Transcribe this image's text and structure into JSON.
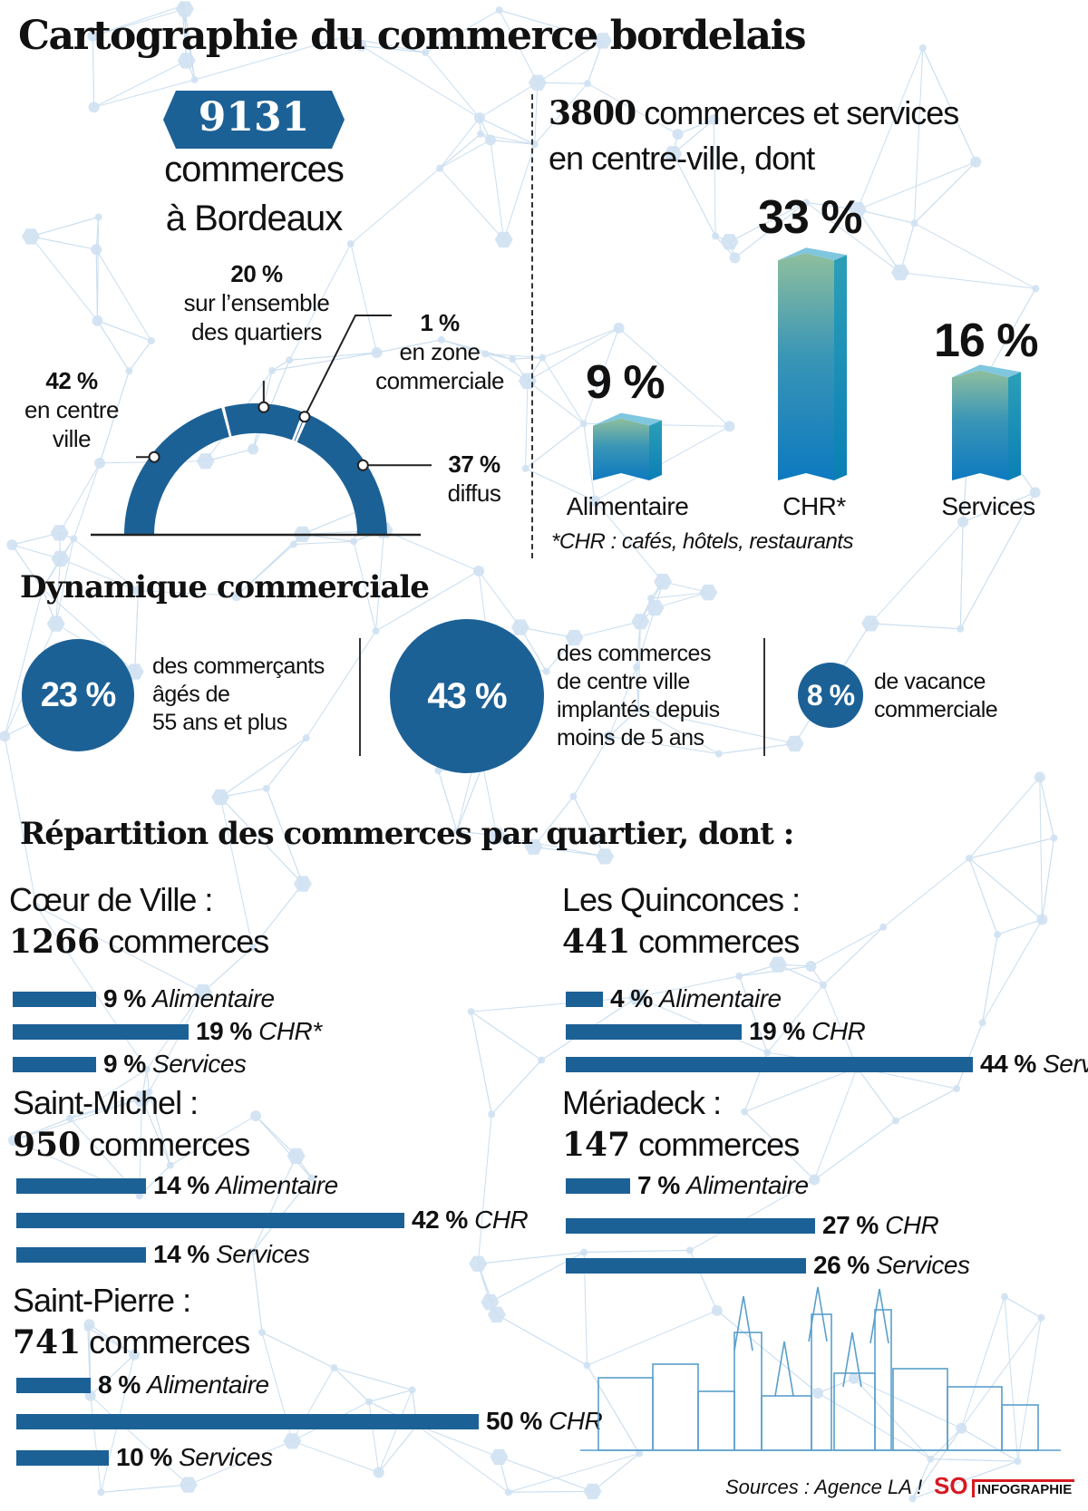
{
  "title": "Cartographie du commerce bordelais",
  "overview": {
    "total_number": "9131",
    "total_label_line1": "commerces",
    "total_label_line2": "à Bordeaux",
    "donut": {
      "segments": [
        {
          "value": 42,
          "pct_label": "42 %",
          "label_line1": "en centre",
          "label_line2": "ville"
        },
        {
          "value": 20,
          "pct_label": "20 %",
          "label_line1": "sur l’ensemble",
          "label_line2": "des quartiers"
        },
        {
          "value": 1,
          "pct_label": "1 %",
          "label_line1": "en zone",
          "label_line2": "commerciale"
        },
        {
          "value": 37,
          "pct_label": "37 %",
          "label_line1": "diffus",
          "label_line2": ""
        }
      ],
      "color": "#1c6196"
    }
  },
  "centre_ville": {
    "count": "3800",
    "heading_rest": "commerces et services",
    "heading_line2": "en centre-ville, dont",
    "bars": [
      {
        "category": "Alimentaire",
        "value": 9,
        "label": "9 %"
      },
      {
        "category": "CHR*",
        "value": 33,
        "label": "33 %"
      },
      {
        "category": "Services",
        "value": 16,
        "label": "16 %"
      }
    ],
    "footnote": "*CHR : cafés, hôtels, restaurants"
  },
  "dynamique": {
    "heading": "Dynamique commerciale",
    "items": [
      {
        "value": "23 %",
        "lines": [
          "des commerçants",
          "âgés de",
          "55 ans et plus"
        ]
      },
      {
        "value": "43 %",
        "lines": [
          "des commerces",
          "de centre ville",
          "implantés depuis",
          "moins de 5 ans"
        ]
      },
      {
        "value": "8 %",
        "lines": [
          "de vacance",
          "commerciale"
        ]
      }
    ]
  },
  "repartition": {
    "heading": "Répartition des commerces par quartier, dont :",
    "count_suffix": "commerces",
    "quartiers": [
      {
        "name": "Cœur de Ville :",
        "count": "1266",
        "bars": [
          {
            "value": 9,
            "pct": "9 %",
            "category": "Alimentaire"
          },
          {
            "value": 19,
            "pct": "19 %",
            "category": "CHR*"
          },
          {
            "value": 9,
            "pct": "9 %",
            "category": "Services"
          }
        ]
      },
      {
        "name": "Saint-Michel :",
        "count": "950",
        "bars": [
          {
            "value": 14,
            "pct": "14 %",
            "category": "Alimentaire"
          },
          {
            "value": 42,
            "pct": "42 %",
            "category": "CHR"
          },
          {
            "value": 14,
            "pct": "14 %",
            "category": "Services"
          }
        ]
      },
      {
        "name": "Saint-Pierre :",
        "count": "741",
        "bars": [
          {
            "value": 8,
            "pct": "8 %",
            "category": "Alimentaire"
          },
          {
            "value": 50,
            "pct": "50 %",
            "category": "CHR"
          },
          {
            "value": 10,
            "pct": "10 %",
            "category": "Services"
          }
        ]
      },
      {
        "name": "Les  Quinconces :",
        "count": "441",
        "bars": [
          {
            "value": 4,
            "pct": "4 %",
            "category": "Alimentaire"
          },
          {
            "value": 19,
            "pct": "19 %",
            "category": "CHR"
          },
          {
            "value": 44,
            "pct": "44 %",
            "category": "Services"
          }
        ]
      },
      {
        "name": "Mériadeck  :",
        "count": "147",
        "bars": [
          {
            "value": 7,
            "pct": "7 %",
            "category": "Alimentaire"
          },
          {
            "value": 27,
            "pct": "27 %",
            "category": "CHR"
          },
          {
            "value": 26,
            "pct": "26 %",
            "category": "Services"
          }
        ]
      }
    ]
  },
  "footer": {
    "sources": "Sources : Agence LA !",
    "logo_so": "SO",
    "logo_text": "INFOGRAPHIE"
  },
  "colors": {
    "accent": "#1c6196",
    "network": "#b9d3ea",
    "logo_red": "#d71920"
  }
}
